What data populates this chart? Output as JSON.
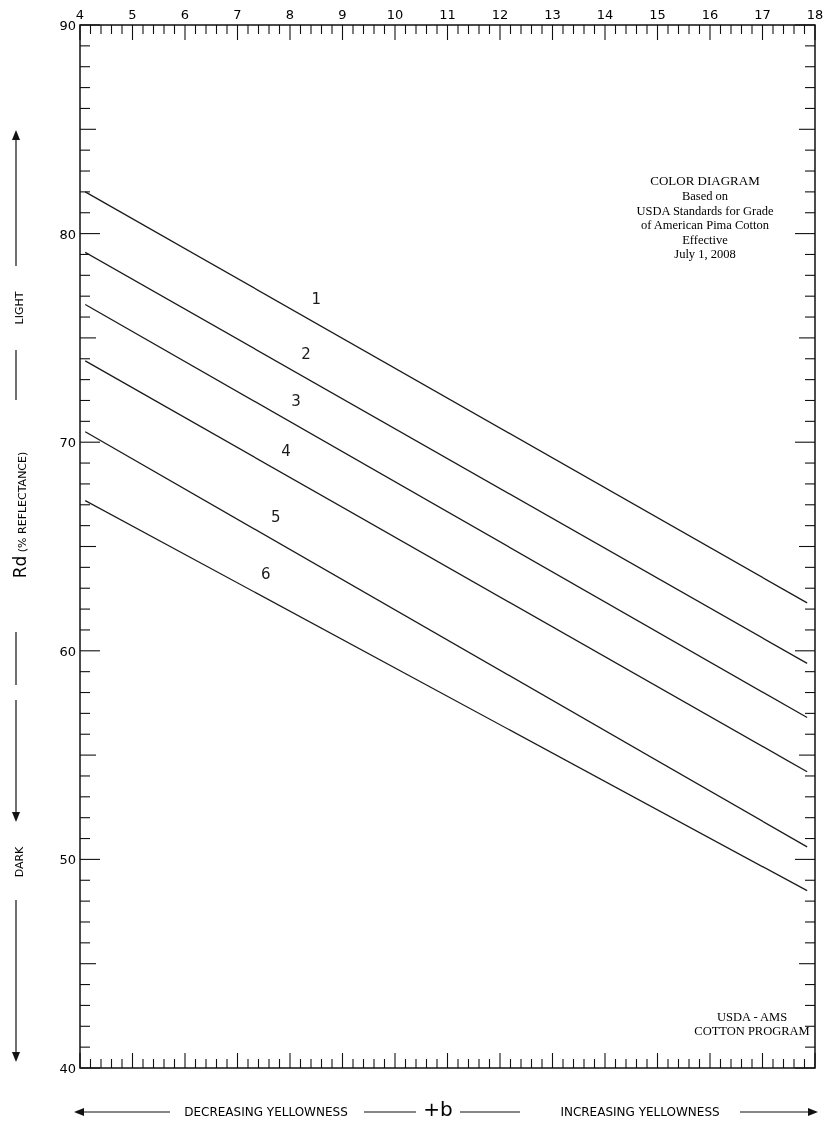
{
  "chart_data": {
    "type": "line",
    "title": "COLOR DIAGRAM",
    "subtitle": "Based on\nUSDA Standards for Grade\nof American Pima Cotton\nEffective\nJuly 1, 2008",
    "xlabel": "+b",
    "ylabel": "Rd (% REFLECTANCE)",
    "xlim": [
      4,
      18
    ],
    "ylim": [
      40,
      90
    ],
    "xticks": [
      4,
      {
        "value": 4.2,
        "label": null
      },
      {
        "value": 4.4,
        "label": null
      },
      {
        "value": 4.6,
        "label": null
      },
      {
        "value": 4.8,
        "label": null
      },
      5,
      {
        "value": 5.2,
        "label": null
      },
      {
        "value": 5.4,
        "label": null
      },
      {
        "value": 5.6,
        "label": null
      },
      {
        "value": 5.8,
        "label": null
      },
      6,
      {
        "value": 6.2,
        "label": null
      },
      {
        "value": 6.4,
        "label": null
      },
      {
        "value": 6.6,
        "label": null
      },
      {
        "value": 6.8,
        "label": null
      },
      7,
      {
        "value": 7.2,
        "label": null
      },
      {
        "value": 7.4,
        "label": null
      },
      {
        "value": 7.6,
        "label": null
      },
      {
        "value": 7.8,
        "label": null
      },
      8,
      {
        "value": 8.2,
        "label": null
      },
      {
        "value": 8.4,
        "label": null
      },
      {
        "value": 8.6,
        "label": null
      },
      {
        "value": 8.8,
        "label": null
      },
      9,
      {
        "value": 9.2,
        "label": null
      },
      {
        "value": 9.4,
        "label": null
      },
      {
        "value": 9.6,
        "label": null
      },
      {
        "value": 9.8,
        "label": null
      },
      10,
      {
        "value": 10.2,
        "label": null
      },
      {
        "value": 10.4,
        "label": null
      },
      {
        "value": 10.6,
        "label": null
      },
      {
        "value": 10.8,
        "label": null
      },
      11,
      {
        "value": 11.2,
        "label": null
      },
      {
        "value": 11.4,
        "label": null
      },
      {
        "value": 11.6,
        "label": null
      },
      {
        "value": 11.8,
        "label": null
      },
      12,
      {
        "value": 12.2,
        "label": null
      },
      {
        "value": 12.4,
        "label": null
      },
      {
        "value": 12.6,
        "label": null
      },
      {
        "value": 12.8,
        "label": null
      },
      13,
      {
        "value": 13.2,
        "label": null
      },
      {
        "value": 13.4,
        "label": null
      },
      {
        "value": 13.6,
        "label": null
      },
      {
        "value": 13.8,
        "label": null
      },
      14,
      {
        "value": 14.2,
        "label": null
      },
      {
        "value": 14.4,
        "label": null
      },
      {
        "value": 14.6,
        "label": null
      },
      {
        "value": 14.8,
        "label": null
      },
      15,
      {
        "value": 15.2,
        "label": null
      },
      {
        "value": 15.4,
        "label": null
      },
      {
        "value": 15.6,
        "label": null
      },
      {
        "value": 15.8,
        "label": null
      },
      16,
      {
        "value": 16.2,
        "label": null
      },
      {
        "value": 16.4,
        "label": null
      },
      {
        "value": 16.6,
        "label": null
      },
      {
        "value": 16.8,
        "label": null
      },
      17,
      {
        "value": 17.2,
        "label": null
      },
      {
        "value": 17.4,
        "label": null
      },
      {
        "value": 17.6,
        "label": null
      },
      {
        "value": 17.8,
        "label": null
      },
      18
    ],
    "yticks": [
      40,
      {
        "value": 41,
        "label": null
      },
      {
        "value": 42,
        "label": null
      },
      {
        "value": 43,
        "label": null
      },
      {
        "value": 44,
        "label": null
      },
      {
        "value": 45,
        "label": null
      },
      {
        "value": 46,
        "label": null
      },
      {
        "value": 47,
        "label": null
      },
      {
        "value": 48,
        "label": null
      },
      {
        "value": 49,
        "label": null
      },
      50,
      {
        "value": 51,
        "label": null
      },
      {
        "value": 52,
        "label": null
      },
      {
        "value": 53,
        "label": null
      },
      {
        "value": 54,
        "label": null
      },
      {
        "value": 55,
        "label": null
      },
      {
        "value": 56,
        "label": null
      },
      {
        "value": 57,
        "label": null
      },
      {
        "value": 58,
        "label": null
      },
      {
        "value": 59,
        "label": null
      },
      60,
      {
        "value": 61,
        "label": null
      },
      {
        "value": 62,
        "label": null
      },
      {
        "value": 63,
        "label": null
      },
      {
        "value": 64,
        "label": null
      },
      {
        "value": 65,
        "label": null
      },
      {
        "value": 66,
        "label": null
      },
      {
        "value": 67,
        "label": null
      },
      {
        "value": 68,
        "label": null
      },
      {
        "value": 69,
        "label": null
      },
      70,
      {
        "value": 71,
        "label": null
      },
      {
        "value": 72,
        "label": null
      },
      {
        "value": 73,
        "label": null
      },
      {
        "value": 74,
        "label": null
      },
      {
        "value": 75,
        "label": null
      },
      {
        "value": 76,
        "label": null
      },
      {
        "value": 77,
        "label": null
      },
      {
        "value": 78,
        "label": null
      },
      {
        "value": 79,
        "label": null
      },
      80,
      {
        "value": 81,
        "label": null
      },
      {
        "value": 82,
        "label": null
      },
      {
        "value": 83,
        "label": null
      },
      {
        "value": 84,
        "label": null
      },
      {
        "value": 85,
        "label": null
      },
      {
        "value": 86,
        "label": null
      },
      {
        "value": 87,
        "label": null
      },
      {
        "value": 88,
        "label": null
      },
      {
        "value": 89,
        "label": null
      },
      90
    ],
    "x": [
      4.1,
      17.85
    ],
    "series": [
      {
        "name": "1",
        "color": "#1a1a1a",
        "values": [
          82.0,
          62.3
        ]
      },
      {
        "name": "2",
        "color": "#1a1a1a",
        "values": [
          79.1,
          59.4
        ]
      },
      {
        "name": "3",
        "color": "#1a1a1a",
        "values": [
          76.6,
          56.8
        ]
      },
      {
        "name": "4",
        "color": "#1a1a1a",
        "values": [
          73.9,
          54.2
        ]
      },
      {
        "name": "5",
        "color": "#1a1a1a",
        "values": [
          70.5,
          50.6
        ]
      },
      {
        "name": "6",
        "color": "#1a1a1a",
        "values": [
          67.2,
          48.5
        ]
      }
    ],
    "annotations": [
      "LIGHT",
      "DARK",
      "DECREASING YELLOWNESS",
      "INCREASING YELLOWNESS",
      "USDA - AMS\nCOTTON PROGRAM"
    ]
  }
}
